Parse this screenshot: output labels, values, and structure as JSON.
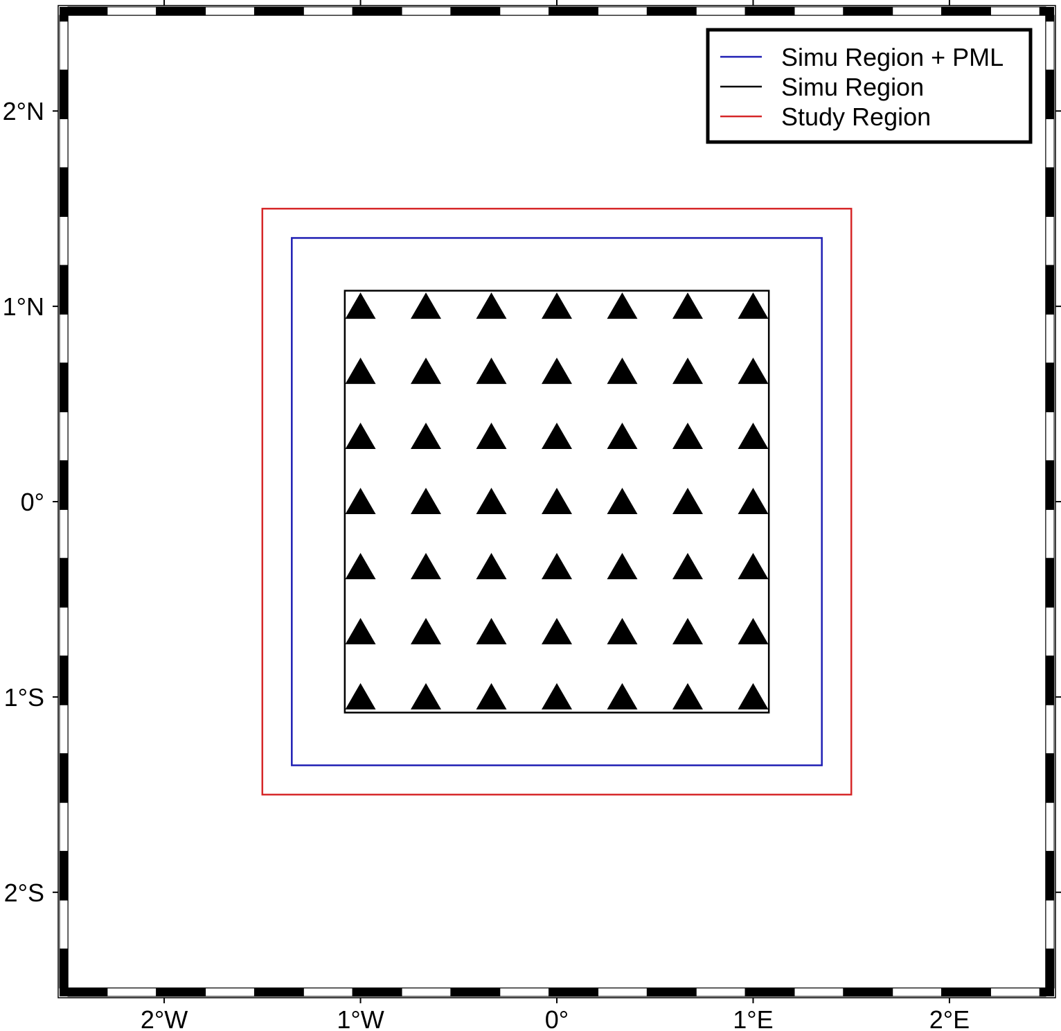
{
  "map": {
    "extent": {
      "lon": [
        -2.54,
        2.54
      ],
      "lat": [
        -2.54,
        2.54
      ]
    },
    "frame_style": "checkered",
    "lon_ticks": [
      {
        "value": -2,
        "label": "2°W"
      },
      {
        "value": -1,
        "label": "1°W"
      },
      {
        "value": 0,
        "label": "0°"
      },
      {
        "value": 1,
        "label": "1°E"
      },
      {
        "value": 2,
        "label": "2°E"
      }
    ],
    "lat_ticks": [
      {
        "value": 2,
        "label": "2°N"
      },
      {
        "value": 1,
        "label": "1°N"
      },
      {
        "value": 0,
        "label": "0°"
      },
      {
        "value": -1,
        "label": "1°S"
      },
      {
        "value": -2,
        "label": "2°S"
      }
    ],
    "regions": [
      {
        "id": "study-region",
        "name": "Study Region",
        "color": "#d62728",
        "lon": [
          -1.5,
          1.5
        ],
        "lat": [
          -1.5,
          1.5
        ]
      },
      {
        "id": "simu-region-pml",
        "name": "Simu Region + PML",
        "color": "#1f1fb4",
        "lon": [
          -1.35,
          1.35
        ],
        "lat": [
          -1.35,
          1.35
        ]
      },
      {
        "id": "simu-region",
        "name": "Simu Region",
        "color": "#000000",
        "lon": [
          -1.08,
          1.08
        ],
        "lat": [
          -1.08,
          1.08
        ]
      }
    ],
    "stations": {
      "marker": "triangle-icon",
      "color": "#000000",
      "lon": [
        -1.0,
        -0.6667,
        -0.3333,
        0.0,
        0.3333,
        0.6667,
        1.0
      ],
      "lat": [
        1.0,
        0.6667,
        0.3333,
        0.0,
        -0.3333,
        -0.6667,
        -1.0
      ]
    }
  },
  "legend": {
    "placement": "top-right",
    "entries": [
      {
        "label": "Simu Region + PML",
        "color": "#1f1fb4"
      },
      {
        "label": "Simu Region",
        "color": "#000000"
      },
      {
        "label": "Study Region",
        "color": "#d62728"
      }
    ]
  }
}
